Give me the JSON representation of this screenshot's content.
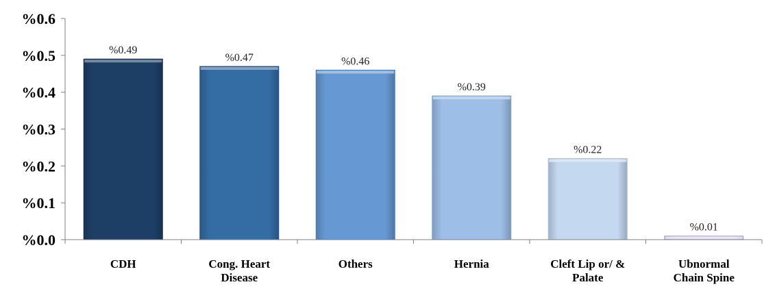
{
  "chart_data": {
    "type": "bar",
    "categories": [
      [
        "CDH"
      ],
      [
        "Cong. Heart",
        "Disease"
      ],
      [
        "Others"
      ],
      [
        "Hernia"
      ],
      [
        "Cleft Lip or/ &",
        "Palate"
      ],
      [
        "Ubnormal",
        "Chain Spine"
      ]
    ],
    "values": [
      0.49,
      0.47,
      0.46,
      0.39,
      0.22,
      0.01
    ],
    "data_labels": [
      "%0.49",
      "%0.47",
      "%0.46",
      "%0.39",
      "%0.22",
      "%0.01"
    ],
    "yticks": [
      0.0,
      0.1,
      0.2,
      0.3,
      0.4,
      0.5,
      0.6
    ],
    "ytick_labels": [
      "%0.0",
      "%0.1",
      "%0.2",
      "%0.3",
      "%0.4",
      "%0.5",
      "%0.6"
    ],
    "ylim": [
      0,
      0.6
    ],
    "title": "",
    "xlabel": "",
    "ylabel": "",
    "grid": false,
    "bar_colors": [
      "#1d3f66",
      "#346ca4",
      "#6699d3",
      "#9dbee6",
      "#c4d8f0",
      "#ddd3ea"
    ],
    "bar_edge_colors": [
      "#13294a",
      "#24507f",
      "#4a7db8",
      "#7fa5d4",
      "#a7bfe0",
      "#b8a8cc"
    ],
    "axis_color": "#7f7f7f"
  }
}
